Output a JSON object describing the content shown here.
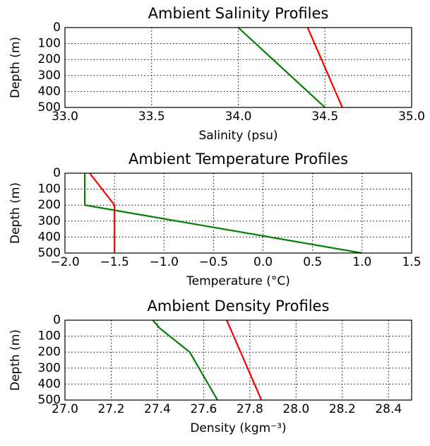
{
  "chart_data": [
    {
      "type": "line",
      "title": "Ambient Salinity Profiles",
      "x_label": "Salinity (psu)",
      "y_label": "Depth (m)",
      "series": [
        {
          "color": "#008000",
          "x": [
            34.0,
            34.5
          ],
          "values": [
            0,
            500
          ]
        },
        {
          "color": "#ff0000",
          "x": [
            34.4,
            34.6
          ],
          "values": [
            0,
            500
          ]
        }
      ],
      "xlim": [
        33.0,
        35.0
      ],
      "xticks": [
        {
          "value": 33,
          "label": "33.0"
        },
        33.5,
        {
          "value": 34,
          "label": "34.0"
        },
        34.5,
        {
          "value": 35,
          "label": "35.0"
        }
      ],
      "ylim": [
        500,
        0
      ],
      "yticks": [
        0,
        100,
        200,
        300,
        400,
        500
      ],
      "grid": true
    },
    {
      "type": "line",
      "title": "Ambient Temperature Profiles",
      "x_label": "Temperature (°C)",
      "y_label": "Depth (m)",
      "series": [
        {
          "color": "#008000",
          "x": [
            -1.8,
            -1.8,
            1.0
          ],
          "values": [
            0,
            200,
            500
          ]
        },
        {
          "color": "#ff0000",
          "x": [
            -1.75,
            -1.5,
            -1.5
          ],
          "values": [
            0,
            200,
            500
          ]
        }
      ],
      "xlim": [
        -2.0,
        1.5
      ],
      "xticks": [
        {
          "value": -2,
          "label": "−2.0"
        },
        {
          "value": -1.5,
          "label": "−1.5"
        },
        {
          "value": -1,
          "label": "−1.0"
        },
        {
          "value": -0.5,
          "label": "−0.5"
        },
        {
          "value": 0,
          "label": "0.0"
        },
        0.5,
        {
          "value": 1,
          "label": "1.0"
        },
        1.5
      ],
      "ylim": [
        500,
        0
      ],
      "yticks": [
        0,
        100,
        200,
        300,
        400,
        500
      ],
      "grid": true
    },
    {
      "type": "line",
      "title": "Ambient Density Profiles",
      "x_label": "Density (kgm⁻³)",
      "y_label": "Depth (m)",
      "series": [
        {
          "color": "#008000",
          "x": [
            27.38,
            27.41,
            27.54,
            27.66
          ],
          "values": [
            0,
            50,
            200,
            500
          ]
        },
        {
          "color": "#ff0000",
          "x": [
            27.7,
            27.85
          ],
          "values": [
            0,
            500
          ]
        }
      ],
      "xlim": [
        27.0,
        28.5
      ],
      "xticks": [
        {
          "value": 27,
          "label": "27.0"
        },
        27.2,
        27.4,
        27.6,
        27.8,
        {
          "value": 28,
          "label": "28.0"
        },
        28.2,
        28.4
      ],
      "ylim": [
        500,
        0
      ],
      "yticks": [
        0,
        100,
        200,
        300,
        400,
        500
      ],
      "grid": true
    }
  ]
}
